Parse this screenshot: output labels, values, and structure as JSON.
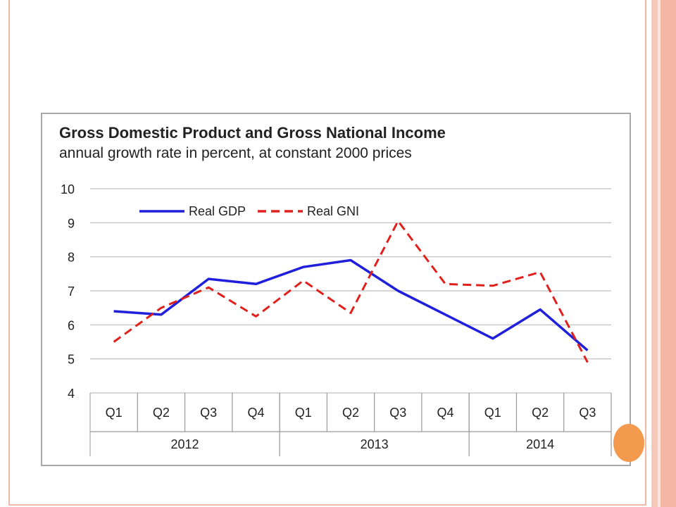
{
  "chart_data": {
    "type": "line",
    "title": "Gross Domestic Product and Gross National Income",
    "subtitle": "annual growth rate in percent, at constant 2000 prices",
    "categories": [
      "Q1",
      "Q2",
      "Q3",
      "Q4",
      "Q1",
      "Q2",
      "Q3",
      "Q4",
      "Q1",
      "Q2",
      "Q3"
    ],
    "groups": [
      {
        "label": "2012",
        "count": 4
      },
      {
        "label": "2013",
        "count": 4
      },
      {
        "label": "2014",
        "count": 3
      }
    ],
    "ylim": [
      4,
      10
    ],
    "yticks": [
      "4",
      "5",
      "6",
      "7",
      "8",
      "9",
      "10"
    ],
    "grid": true,
    "legend_position": "top-left",
    "series": [
      {
        "name": "Real GDP",
        "color": "#1f1fdc",
        "style": "solid",
        "values": [
          6.4,
          6.3,
          7.35,
          7.2,
          7.7,
          7.9,
          7.0,
          6.3,
          5.6,
          6.45,
          5.25
        ]
      },
      {
        "name": "Real GNI",
        "color": "#e0201c",
        "style": "dashed",
        "values": [
          5.5,
          6.5,
          7.1,
          6.25,
          7.3,
          6.35,
          9.05,
          7.2,
          7.15,
          7.55,
          4.9
        ]
      }
    ]
  }
}
